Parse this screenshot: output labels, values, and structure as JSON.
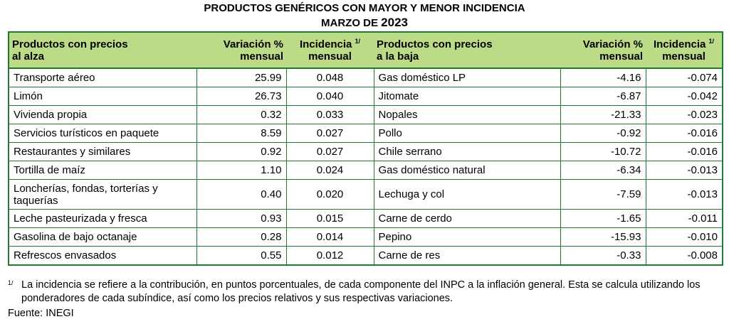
{
  "title_line1": "PRODUCTOS GENÉRICOS CON MAYOR Y MENOR INCIDENCIA",
  "title_line2_prefix": "MARZO DE ",
  "title_line2_year": "2023",
  "headers": {
    "up_line1": "Productos con precios",
    "up_line2": "al alza",
    "var_line1": "Variación %",
    "var_line2": "mensual",
    "inc_line1": "Incidencia ",
    "inc_sup": "1/",
    "inc_line2": "mensual",
    "down_line1": "Productos con precios",
    "down_line2": "a la baja"
  },
  "rows": [
    {
      "up": "Transporte aéreo",
      "up_var": "25.99",
      "up_inc": "0.048",
      "down": "Gas doméstico LP",
      "down_var": "-4.16",
      "down_inc": "-0.074"
    },
    {
      "up": "Limón",
      "up_var": "26.73",
      "up_inc": "0.040",
      "down": "Jitomate",
      "down_var": "-6.87",
      "down_inc": "-0.042"
    },
    {
      "up": "Vivienda propia",
      "up_var": "0.32",
      "up_inc": "0.033",
      "down": "Nopales",
      "down_var": "-21.33",
      "down_inc": "-0.023"
    },
    {
      "up": "Servicios turísticos en paquete",
      "up_var": "8.59",
      "up_inc": "0.027",
      "down": "Pollo",
      "down_var": "-0.92",
      "down_inc": "-0.016"
    },
    {
      "up": "Restaurantes y similares",
      "up_var": "0.92",
      "up_inc": "0.027",
      "down": "Chile serrano",
      "down_var": "-10.72",
      "down_inc": "-0.016"
    },
    {
      "up": "Tortilla de maíz",
      "up_var": "1.10",
      "up_inc": "0.024",
      "down": "Gas doméstico natural",
      "down_var": "-6.34",
      "down_inc": "-0.013"
    },
    {
      "up_a": "Loncherías, fondas, torterías y",
      "up_b": "taquerías",
      "up_var": "0.40",
      "up_inc": "0.020",
      "down": "Lechuga y col",
      "down_var": "-7.59",
      "down_inc": "-0.013"
    },
    {
      "up": "Leche pasteurizada y fresca",
      "up_var": "0.93",
      "up_inc": "0.015",
      "down": "Carne de cerdo",
      "down_var": "-1.65",
      "down_inc": "-0.011"
    },
    {
      "up": "Gasolina de bajo octanaje",
      "up_var": "0.28",
      "up_inc": "0.014",
      "down": "Pepino",
      "down_var": "-15.93",
      "down_inc": "-0.010"
    },
    {
      "up": "Refrescos envasados",
      "up_var": "0.55",
      "up_inc": "0.012",
      "down": "Carne de res",
      "down_var": "-0.33",
      "down_inc": "-0.008"
    }
  ],
  "footnote_mark": "1/",
  "footnote_text": "La incidencia se refiere a la contribución, en puntos porcentuales, de cada componente del INPC a la inflación general. Esta se calcula utilizando los ponderadores de cada subíndice, así como los precios relativos y sus respectivas variaciones.",
  "source": "Fuente: INEGI"
}
